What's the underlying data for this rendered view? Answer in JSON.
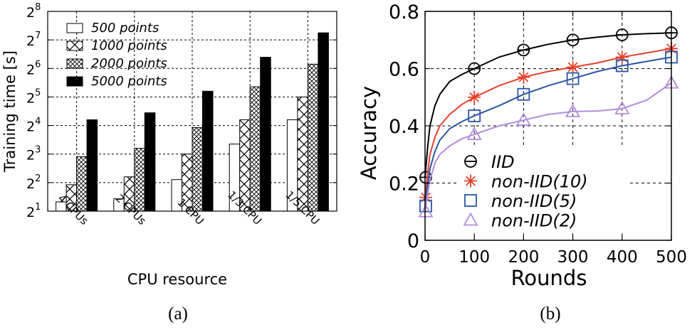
{
  "colors": {
    "black": "#000000",
    "red": "#e3412b",
    "blue": "#2a55a3",
    "purple": "#b48cdc"
  },
  "chart_data": [
    {
      "panel_label": "(a)",
      "type": "bar",
      "xlabel": "CPU resource",
      "ylabel": "Training time [s]",
      "yscale": "log2",
      "ylim": [
        2,
        256
      ],
      "ytick_exponents": [
        "1",
        "2",
        "3",
        "4",
        "5",
        "6",
        "7",
        "8"
      ],
      "categories": [
        "4 CPUs",
        "2 CPUs",
        "1 CPU",
        "1/3 CPU",
        "1/5 CPU"
      ],
      "series": [
        {
          "name": "500 points",
          "pattern": "white",
          "values": [
            2.5,
            2.7,
            4.3,
            10.2,
            18.4
          ]
        },
        {
          "name": "1000 points",
          "pattern": "cross",
          "values": [
            3.8,
            4.6,
            8.0,
            18.4,
            32.0
          ]
        },
        {
          "name": "2000 points",
          "pattern": "crosshatch",
          "values": [
            7.5,
            9.2,
            15.2,
            41.0,
            71.0
          ]
        },
        {
          "name": "5000 points",
          "pattern": "black",
          "values": [
            18.4,
            21.8,
            36.8,
            84.0,
            152.0
          ]
        }
      ],
      "grid": "dashed",
      "legend_position": "top-left"
    },
    {
      "panel_label": "(b)",
      "type": "line",
      "xlabel": "Rounds",
      "ylabel": "Accuracy",
      "xlim": [
        0,
        500
      ],
      "ylim": [
        0,
        0.8
      ],
      "xticks": [
        0,
        100,
        200,
        300,
        400,
        500
      ],
      "xtick_labels": [
        "0",
        "100",
        "200",
        "300",
        "400",
        "500"
      ],
      "yticks": [
        0,
        0.2,
        0.4,
        0.6,
        0.8
      ],
      "ytick_labels": [
        "0",
        "0.2",
        "0.4",
        "0.6",
        "0.8"
      ],
      "series": [
        {
          "name": "IID",
          "color": "#000000",
          "marker": "circle-bar",
          "x": [
            0,
            5,
            10,
            20,
            30,
            50,
            75,
            100,
            150,
            200,
            250,
            300,
            350,
            400,
            450,
            500
          ],
          "y": [
            0.22,
            0.32,
            0.4,
            0.47,
            0.51,
            0.555,
            0.58,
            0.6,
            0.64,
            0.665,
            0.685,
            0.7,
            0.71,
            0.718,
            0.722,
            0.725
          ]
        },
        {
          "name": "non-IID(10)",
          "color": "#e3412b",
          "marker": "star",
          "x": [
            0,
            5,
            10,
            20,
            30,
            50,
            75,
            100,
            150,
            200,
            250,
            300,
            350,
            400,
            450,
            500
          ],
          "y": [
            0.15,
            0.23,
            0.3,
            0.36,
            0.4,
            0.44,
            0.475,
            0.5,
            0.54,
            0.57,
            0.59,
            0.605,
            0.62,
            0.64,
            0.655,
            0.67
          ]
        },
        {
          "name": "non-IID(5)",
          "color": "#2a55a3",
          "marker": "square",
          "x": [
            0,
            5,
            10,
            20,
            30,
            50,
            75,
            100,
            150,
            200,
            250,
            300,
            350,
            400,
            450,
            500
          ],
          "y": [
            0.12,
            0.19,
            0.25,
            0.31,
            0.35,
            0.39,
            0.415,
            0.435,
            0.47,
            0.51,
            0.54,
            0.565,
            0.59,
            0.61,
            0.625,
            0.64
          ]
        },
        {
          "name": "non-IID(2)",
          "color": "#b48cdc",
          "marker": "triangle",
          "x": [
            0,
            5,
            10,
            20,
            30,
            50,
            75,
            100,
            150,
            200,
            250,
            300,
            350,
            400,
            450,
            500
          ],
          "y": [
            0.1,
            0.16,
            0.21,
            0.27,
            0.3,
            0.33,
            0.355,
            0.37,
            0.4,
            0.42,
            0.44,
            0.45,
            0.452,
            0.46,
            0.49,
            0.55
          ]
        }
      ],
      "marker_x": [
        100,
        200,
        300,
        400,
        500
      ],
      "grid": "dashed",
      "legend_position": "bottom-center"
    }
  ]
}
